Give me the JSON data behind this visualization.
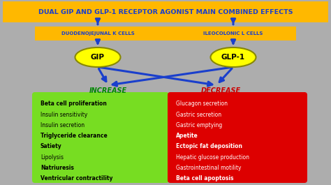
{
  "title": "DUAL GIP AND GLP-1 RECEPTOR AGONIST MAIN COMBINED EFFECTS",
  "title_bg": "#FFB800",
  "title_color": "#1A3FCC",
  "bg_color": "#ADADAD",
  "cell_bar_color": "#FFB800",
  "cell_bar_text_color": "#1A3FCC",
  "left_cell_label": "DUODENOJEJUNAL K CELLS",
  "right_cell_label": "ILEOCOLONIC L CELLS",
  "gip_label": "GIP",
  "glp_label": "GLP-1",
  "ellipse_color": "#FFFF00",
  "ellipse_edge": "#888800",
  "arrow_color": "#1A3FCC",
  "increase_label": "INCREASE",
  "increase_color": "#008800",
  "decrease_label": "DECREASE",
  "decrease_color": "#CC0000",
  "green_box_color": "#77DD22",
  "red_box_color": "#DD0000",
  "increase_items": [
    "Beta cell proliferation",
    "Insulin sensitivity",
    "Insulin secretion",
    "Triglyceride clearance",
    "Satiety",
    "Lipolysis",
    "Natriuresis",
    "Ventricular contractility"
  ],
  "decrease_items": [
    "Glucagon secretion",
    "Gastric secretion",
    "Gastric emptying",
    "Apetite",
    "Ectopic fat deposition",
    "Hepatic glucose production",
    "Gastrointestinal motility",
    "Beta cell apoptosis"
  ],
  "bold_increase_items": [
    "Beta cell proliferation",
    "Triglyceride clearance",
    "Satiety",
    "Natriuresis",
    "Ventricular contractility"
  ],
  "bold_decrease_items": [
    "Apetite",
    "Ectopic fat deposition",
    "Beta cell apoptosis"
  ]
}
